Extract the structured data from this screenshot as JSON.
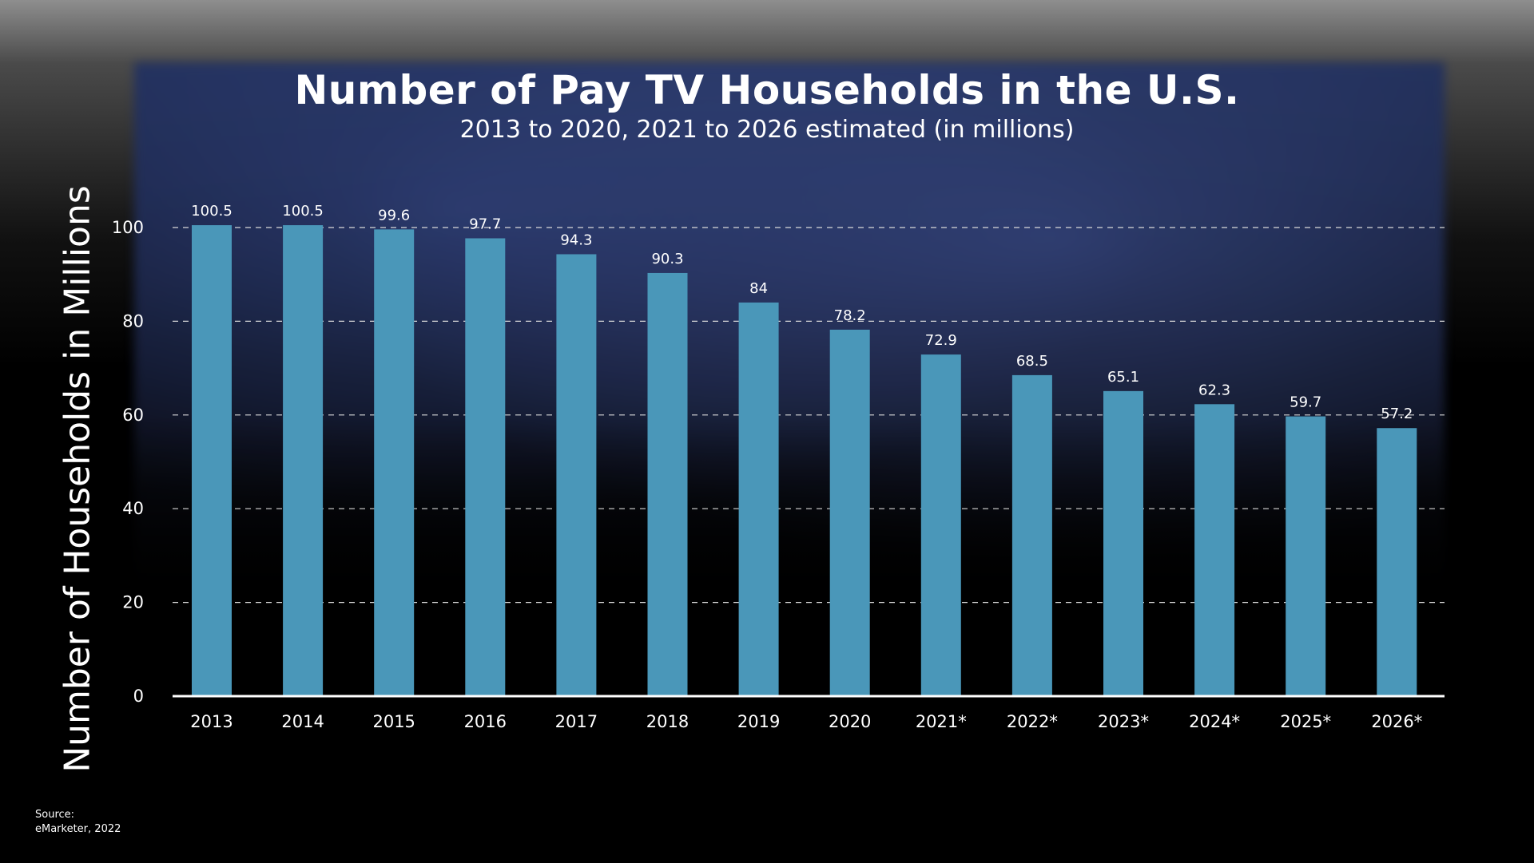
{
  "title": "Number of Pay TV Households in the U.S.",
  "subtitle": "2013 to 2020, 2021 to 2026 estimated (in millions)",
  "source": {
    "line1": "Source:",
    "line2": "eMarketer, 2022"
  },
  "colors": {
    "bar": "#4a97b9",
    "text": "#ffffff",
    "grid": "#d9d9d9"
  },
  "chart_data": {
    "type": "bar",
    "title": "Number of Pay TV Households in the U.S.",
    "subtitle": "2013 to 2020, 2021 to 2026 estimated (in millions)",
    "xlabel": "",
    "ylabel": "Number of Households in Millions",
    "categories": [
      "2013",
      "2014",
      "2015",
      "2016",
      "2017",
      "2018",
      "2019",
      "2020",
      "2021*",
      "2022*",
      "2023*",
      "2024*",
      "2025*",
      "2026*"
    ],
    "values": [
      100.5,
      100.5,
      99.6,
      97.7,
      94.3,
      90.3,
      84,
      78.2,
      72.9,
      68.5,
      65.1,
      62.3,
      59.7,
      57.2
    ],
    "value_labels": [
      "100.5",
      "100.5",
      "99.6",
      "97.7",
      "94.3",
      "90.3",
      "84",
      "78.2",
      "72.9",
      "68.5",
      "65.1",
      "62.3",
      "59.7",
      "57.2"
    ],
    "ylim": [
      0,
      100
    ],
    "yticks": [
      0,
      20,
      40,
      60,
      80,
      100
    ],
    "grid": "horizontal dashed",
    "legend": "none"
  }
}
